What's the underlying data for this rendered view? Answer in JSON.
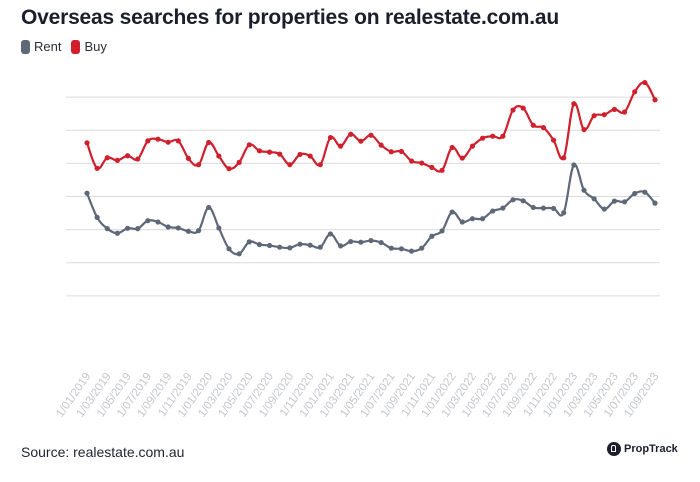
{
  "title": "Overseas searches for properties on realestate.com.au",
  "source": "Source: realestate.com.au",
  "brand": {
    "name": "PropTrack",
    "icon": "proptrack-logo-icon"
  },
  "colors": {
    "rent": "#5f6878",
    "buy": "#d0202e",
    "grid": "#d9dbe0",
    "tick": "#c4c7cd"
  },
  "chart_data": {
    "type": "line",
    "title": "Overseas searches for properties on realestate.com.au",
    "xlabel": "",
    "ylabel": "",
    "grid": true,
    "y_axis_labels_shown": false,
    "legend_position": "top-left",
    "x_tick_labels": [
      "1/01/2019",
      "1/03/2019",
      "1/05/2019",
      "1/07/2019",
      "1/09/2019",
      "1/11/2019",
      "1/01/2020",
      "1/03/2020",
      "1/05/2020",
      "1/07/2020",
      "1/09/2020",
      "1/11/2020",
      "1/01/2021",
      "1/03/2021",
      "1/05/2021",
      "1/07/2021",
      "1/09/2021",
      "1/11/2021",
      "1/01/2022",
      "1/03/2022",
      "1/05/2022",
      "1/07/2022",
      "1/09/2022",
      "1/11/2022",
      "1/01/2023",
      "1/03/2023",
      "1/05/2023",
      "1/07/2023",
      "1/09/2023"
    ],
    "ylim": [
      0,
      8
    ],
    "series": [
      {
        "name": "Rent",
        "color": "#5f6878",
        "values": [
          4.1,
          3.37,
          3.03,
          2.89,
          3.04,
          3.03,
          3.27,
          3.23,
          3.08,
          3.05,
          2.95,
          2.97,
          3.67,
          3.05,
          2.42,
          2.27,
          2.63,
          2.55,
          2.52,
          2.47,
          2.45,
          2.56,
          2.53,
          2.47,
          2.87,
          2.51,
          2.64,
          2.62,
          2.67,
          2.61,
          2.44,
          2.42,
          2.35,
          2.44,
          2.8,
          2.96,
          3.53,
          3.23,
          3.33,
          3.33,
          3.56,
          3.65,
          3.9,
          3.87,
          3.67,
          3.65,
          3.64,
          3.51,
          4.95,
          4.19,
          3.93,
          3.62,
          3.86,
          3.84,
          4.09,
          4.13,
          3.8
        ]
      },
      {
        "name": "Buy",
        "color": "#d0202e",
        "values": [
          5.62,
          4.85,
          5.17,
          5.09,
          5.23,
          5.13,
          5.68,
          5.73,
          5.64,
          5.68,
          5.15,
          4.96,
          5.63,
          5.22,
          4.84,
          5.03,
          5.56,
          5.38,
          5.34,
          5.28,
          4.96,
          5.27,
          5.22,
          4.96,
          5.78,
          5.52,
          5.88,
          5.67,
          5.85,
          5.55,
          5.35,
          5.36,
          5.07,
          5.01,
          4.88,
          4.79,
          5.48,
          5.16,
          5.52,
          5.76,
          5.82,
          5.82,
          6.61,
          6.67,
          6.15,
          6.08,
          5.7,
          5.17,
          6.8,
          6.02,
          6.44,
          6.47,
          6.63,
          6.55,
          7.16,
          7.44,
          6.92
        ]
      }
    ]
  }
}
